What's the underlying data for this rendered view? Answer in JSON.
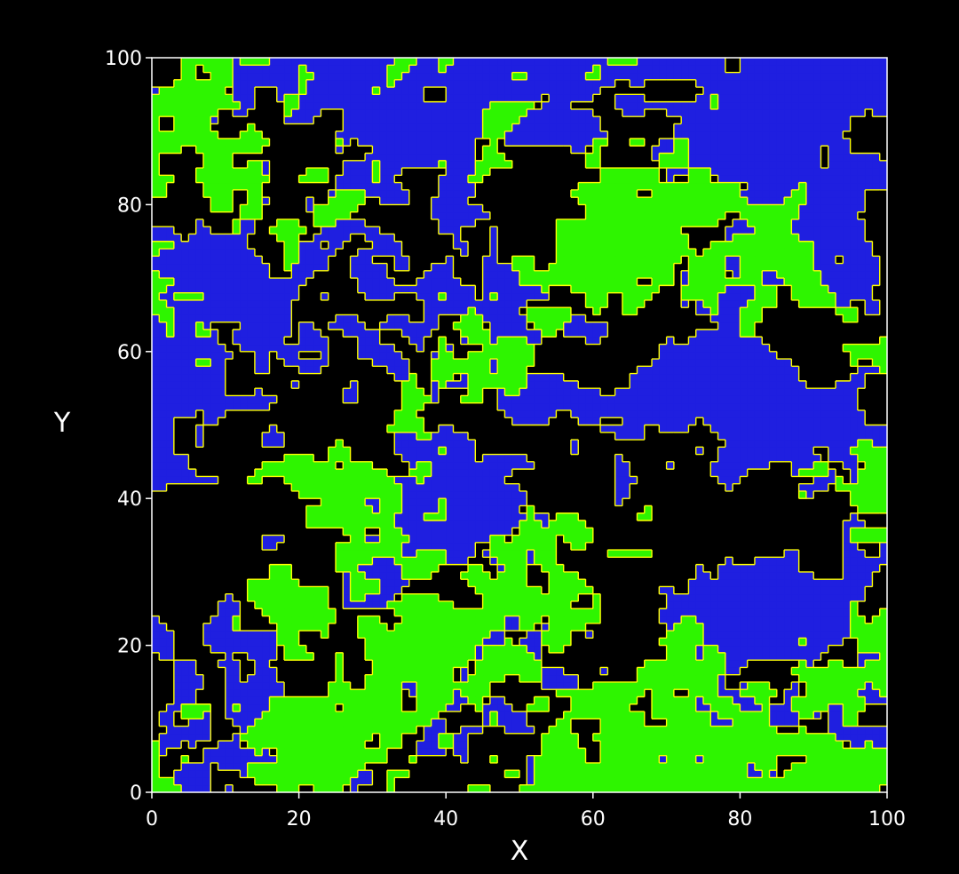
{
  "chart_data": {
    "type": "heatmap",
    "xlabel": "X",
    "ylabel": "Y",
    "xlim": [
      0,
      100
    ],
    "ylim": [
      0,
      100
    ],
    "x_ticks": [
      "0",
      "20",
      "40",
      "60",
      "80",
      "100"
    ],
    "y_ticks": [
      "0",
      "20",
      "40",
      "60",
      "80",
      "100"
    ],
    "grid": false,
    "legend": "none",
    "cell_grid": [
      100,
      100
    ],
    "colors": {
      "background": "#000000",
      "low_phase": "#1f1fe0",
      "high_phase": "#2ef500",
      "contour": "#ffff00",
      "text": "#ffffff",
      "frame": "#ffffff"
    }
  }
}
